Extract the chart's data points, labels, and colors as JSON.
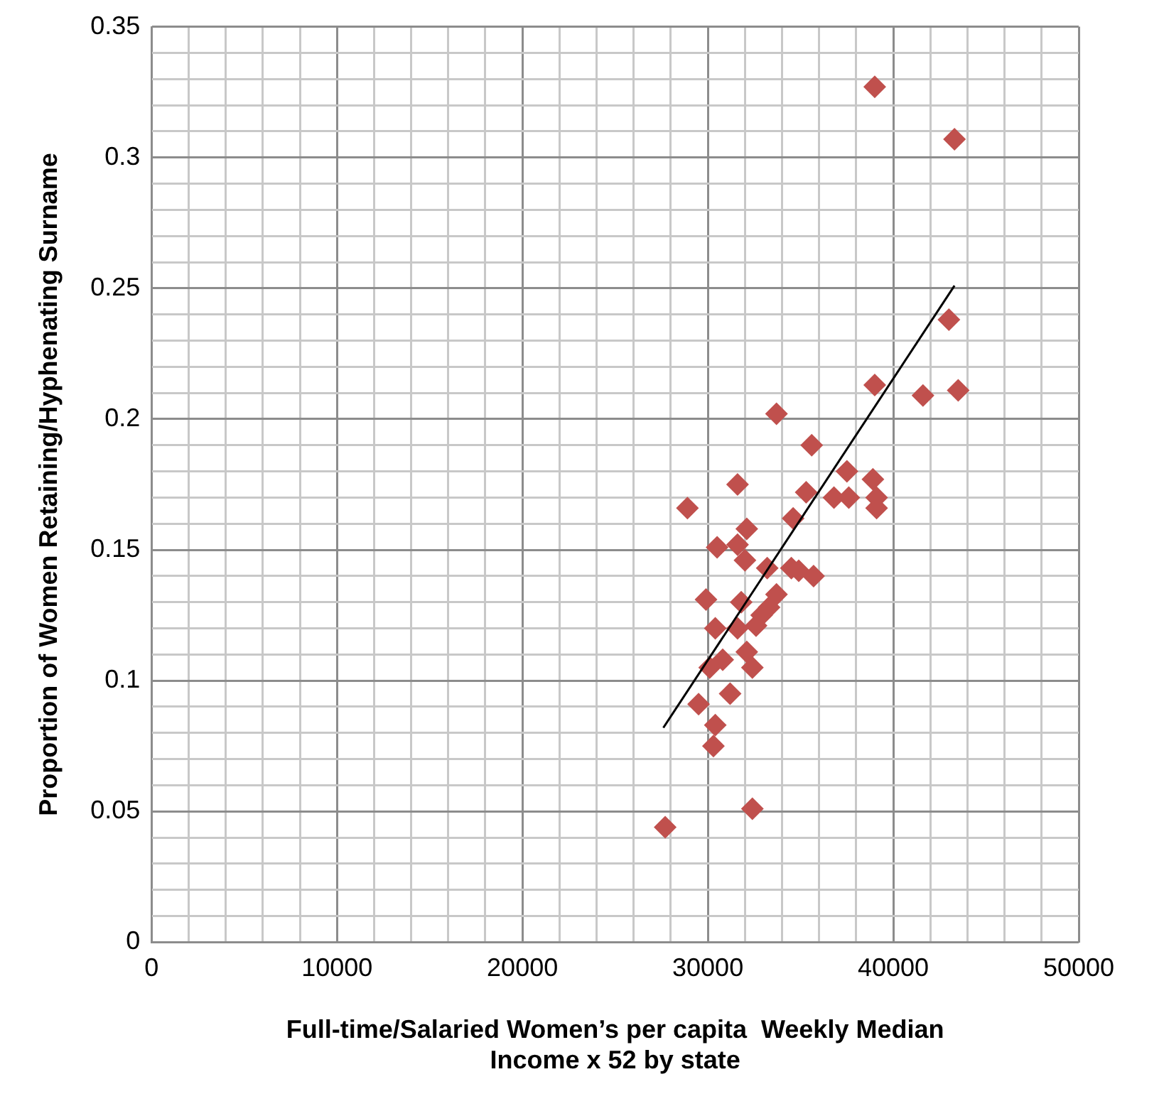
{
  "chart_data": {
    "type": "scatter",
    "xlabel": "Full-time/Salaried Women’s per capita  Weekly Median Income x 52 by state",
    "ylabel": "Proportion of Women Retaining/Hyphenating Surname",
    "xlim": [
      0,
      50000
    ],
    "ylim": [
      0,
      0.35
    ],
    "xticks": [
      0,
      {
        "value": 2000,
        "label": null
      },
      {
        "value": 4000,
        "label": null
      },
      {
        "value": 6000,
        "label": null
      },
      {
        "value": 8000,
        "label": null
      },
      10000,
      {
        "value": 12000,
        "label": null
      },
      {
        "value": 14000,
        "label": null
      },
      {
        "value": 16000,
        "label": null
      },
      {
        "value": 18000,
        "label": null
      },
      20000,
      {
        "value": 22000,
        "label": null
      },
      {
        "value": 24000,
        "label": null
      },
      {
        "value": 26000,
        "label": null
      },
      {
        "value": 28000,
        "label": null
      },
      30000,
      {
        "value": 32000,
        "label": null
      },
      {
        "value": 34000,
        "label": null
      },
      {
        "value": 36000,
        "label": null
      },
      {
        "value": 38000,
        "label": null
      },
      40000,
      {
        "value": 42000,
        "label": null
      },
      {
        "value": 44000,
        "label": null
      },
      {
        "value": 46000,
        "label": null
      },
      {
        "value": 48000,
        "label": null
      },
      50000
    ],
    "yticks": [
      0,
      {
        "value": 0.01,
        "label": null
      },
      {
        "value": 0.02,
        "label": null
      },
      {
        "value": 0.03,
        "label": null
      },
      {
        "value": 0.04,
        "label": null
      },
      0.05,
      {
        "value": 0.06,
        "label": null
      },
      {
        "value": 0.07,
        "label": null
      },
      {
        "value": 0.08,
        "label": null
      },
      {
        "value": 0.09,
        "label": null
      },
      0.1,
      {
        "value": 0.11,
        "label": null
      },
      {
        "value": 0.12,
        "label": null
      },
      {
        "value": 0.13,
        "label": null
      },
      {
        "value": 0.14,
        "label": null
      },
      0.15,
      {
        "value": 0.16,
        "label": null
      },
      {
        "value": 0.17,
        "label": null
      },
      {
        "value": 0.18,
        "label": null
      },
      {
        "value": 0.19,
        "label": null
      },
      0.2,
      {
        "value": 0.21,
        "label": null
      },
      {
        "value": 0.22,
        "label": null
      },
      {
        "value": 0.23,
        "label": null
      },
      {
        "value": 0.24,
        "label": null
      },
      0.25,
      {
        "value": 0.26,
        "label": null
      },
      {
        "value": 0.27,
        "label": null
      },
      {
        "value": 0.28,
        "label": null
      },
      {
        "value": 0.29,
        "label": null
      },
      0.3,
      {
        "value": 0.31,
        "label": null
      },
      {
        "value": 0.32,
        "label": null
      },
      {
        "value": 0.33,
        "label": null
      },
      {
        "value": 0.34,
        "label": null
      },
      0.35
    ],
    "grid": true,
    "legend": false,
    "marker": "diamond",
    "series": [
      {
        "type": "scatter",
        "color": "#c0504d",
        "x": [
          33700,
          35600,
          31600,
          28900,
          37500,
          38900,
          35300,
          36800,
          37600,
          39100,
          39100,
          34600,
          32100,
          30500,
          31600,
          32000,
          33200,
          34500,
          34900,
          35700,
          29900,
          31800,
          33700,
          33300,
          32900,
          32600,
          30400,
          31600,
          32100,
          30800,
          32400,
          30100,
          31200,
          29500,
          30400,
          30300,
          32400,
          27700,
          39000,
          43300,
          43000,
          39000,
          41600,
          43500
        ],
        "values": [
          0.202,
          0.19,
          0.175,
          0.166,
          0.18,
          0.177,
          0.172,
          0.17,
          0.17,
          0.17,
          0.166,
          0.162,
          0.158,
          0.151,
          0.152,
          0.146,
          0.143,
          0.143,
          0.142,
          0.14,
          0.131,
          0.13,
          0.133,
          0.128,
          0.125,
          0.121,
          0.12,
          0.12,
          0.111,
          0.108,
          0.105,
          0.105,
          0.095,
          0.091,
          0.083,
          0.075,
          0.051,
          0.044,
          0.327,
          0.307,
          0.238,
          0.213,
          0.209,
          0.211
        ]
      },
      {
        "type": "line",
        "color": "#000000",
        "marker": "none",
        "x": [
          27600,
          43300
        ],
        "values": [
          0.082,
          0.251
        ]
      }
    ]
  }
}
